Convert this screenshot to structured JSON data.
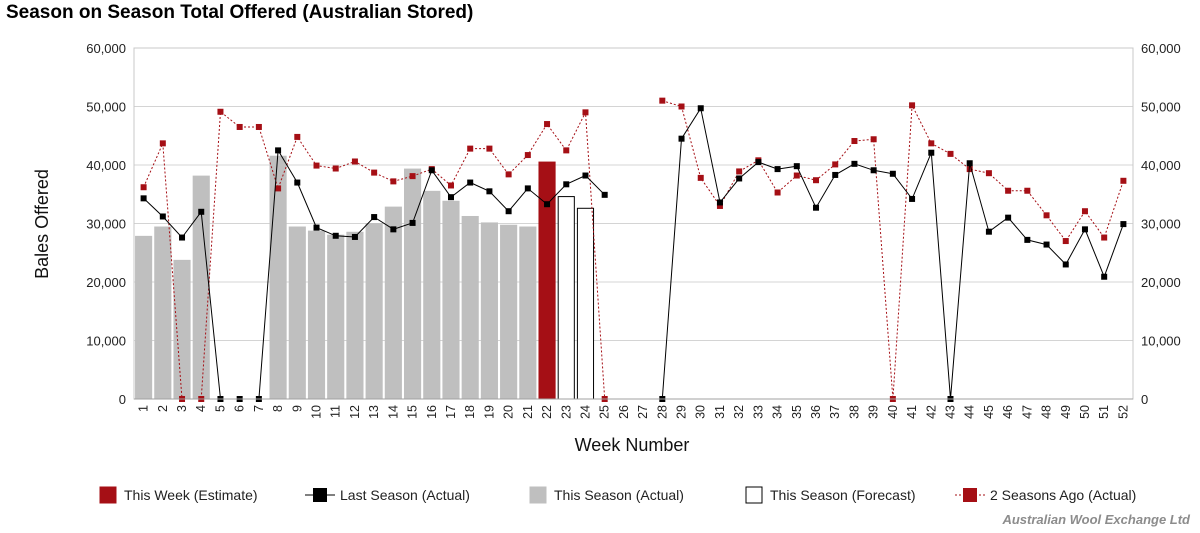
{
  "title": "Season on Season Total Offered (Australian Stored)",
  "footer": "Australian Wool Exchange Ltd",
  "chart_data": {
    "type": "bar",
    "xlabel": "Week Number",
    "ylabel": "Bales Offered",
    "ylim": [
      0,
      60000
    ],
    "yticks": [
      "0",
      "10,000",
      "20,000",
      "30,000",
      "40,000",
      "50,000",
      "60,000"
    ],
    "ytick_values": [
      0,
      10000,
      20000,
      30000,
      40000,
      50000,
      60000
    ],
    "grid": true,
    "legend_position": "bottom",
    "categories": [
      "1",
      "2",
      "3",
      "4",
      "5",
      "6",
      "7",
      "8",
      "9",
      "10",
      "11",
      "12",
      "13",
      "14",
      "15",
      "16",
      "17",
      "18",
      "19",
      "20",
      "21",
      "22",
      "23",
      "24",
      "25",
      "26",
      "27",
      "28",
      "29",
      "30",
      "31",
      "32",
      "33",
      "34",
      "35",
      "36",
      "37",
      "38",
      "39",
      "40",
      "41",
      "42",
      "43",
      "44",
      "45",
      "46",
      "47",
      "48",
      "49",
      "50",
      "51",
      "52"
    ],
    "series": [
      {
        "name": "This Week (Estimate)",
        "kind": "bar",
        "color": "#a50f15",
        "values": [
          null,
          null,
          null,
          null,
          null,
          null,
          null,
          null,
          null,
          null,
          null,
          null,
          null,
          null,
          null,
          null,
          null,
          null,
          null,
          null,
          null,
          40500,
          null,
          null,
          null,
          null,
          null,
          null,
          null,
          null,
          null,
          null,
          null,
          null,
          null,
          null,
          null,
          null,
          null,
          null,
          null,
          null,
          null,
          null,
          null,
          null,
          null,
          null,
          null,
          null,
          null,
          null
        ]
      },
      {
        "name": "Last Season (Actual)",
        "kind": "line",
        "color": "#000000",
        "values": [
          34300,
          31200,
          27600,
          32000,
          0,
          0,
          0,
          42500,
          37000,
          29300,
          27900,
          27700,
          31100,
          29000,
          30100,
          39100,
          34500,
          37000,
          35500,
          32100,
          36000,
          33300,
          36700,
          38200,
          34900,
          null,
          null,
          0,
          44500,
          49700,
          33600,
          37700,
          40500,
          39300,
          39800,
          32700,
          38300,
          40200,
          39100,
          38500,
          34200,
          42100,
          0,
          40300,
          28600,
          31000,
          27200,
          26400,
          23000,
          29000,
          20900,
          29900
        ]
      },
      {
        "name": "This Season (Actual)",
        "kind": "bar",
        "color": "#bfbfbf",
        "values": [
          27800,
          29400,
          23700,
          38100,
          0,
          0,
          0,
          41500,
          29400,
          28700,
          28000,
          28500,
          30000,
          32800,
          39300,
          35500,
          33800,
          31200,
          30100,
          29700,
          29400,
          null,
          null,
          null,
          null,
          null,
          null,
          null,
          null,
          null,
          null,
          null,
          null,
          null,
          null,
          null,
          null,
          null,
          null,
          null,
          null,
          null,
          null,
          null,
          null,
          null,
          null,
          null,
          null,
          null,
          null,
          null
        ]
      },
      {
        "name": "This Season (Forecast)",
        "kind": "bar",
        "color": "#ffffff",
        "values": [
          null,
          null,
          null,
          null,
          null,
          null,
          null,
          null,
          null,
          null,
          null,
          null,
          null,
          null,
          null,
          null,
          null,
          null,
          null,
          null,
          null,
          null,
          34600,
          32600,
          null,
          null,
          null,
          null,
          null,
          null,
          null,
          null,
          null,
          null,
          null,
          null,
          null,
          null,
          null,
          null,
          null,
          null,
          null,
          null,
          null,
          null,
          null,
          null,
          null,
          null,
          null,
          null
        ]
      },
      {
        "name": "2 Seasons Ago (Actual)",
        "kind": "line",
        "color": "#a50f15",
        "values": [
          36200,
          43700,
          0,
          0,
          49100,
          46500,
          46500,
          36000,
          44800,
          39900,
          39400,
          40600,
          38700,
          37200,
          38100,
          39300,
          36500,
          42800,
          42800,
          38400,
          41700,
          47000,
          42500,
          49000,
          0,
          null,
          null,
          51000,
          50000,
          37800,
          33000,
          38900,
          40800,
          35300,
          38200,
          37400,
          40100,
          44100,
          44400,
          0,
          50200,
          43700,
          41900,
          39300,
          38600,
          35600,
          35600,
          31400,
          27000,
          32100,
          27600,
          37300
        ]
      }
    ]
  }
}
